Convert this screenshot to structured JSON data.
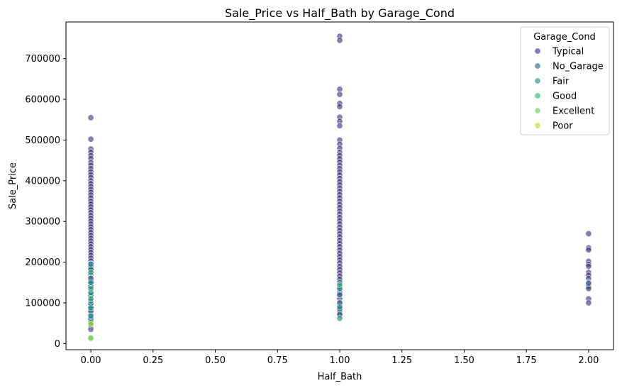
{
  "chart_data": {
    "type": "scatter",
    "title": "Sale_Price vs Half_Bath by Garage_Cond",
    "xlabel": "Half_Bath",
    "ylabel": "Sale_Price",
    "xlim": [
      -0.1,
      2.1
    ],
    "ylim": [
      -15000,
      790000
    ],
    "xticks": [
      0.0,
      0.25,
      0.5,
      0.75,
      1.0,
      1.25,
      1.5,
      1.75,
      2.0
    ],
    "xtick_labels": [
      "0.00",
      "0.25",
      "0.50",
      "0.75",
      "1.00",
      "1.25",
      "1.50",
      "1.75",
      "2.00"
    ],
    "yticks": [
      0,
      100000,
      200000,
      300000,
      400000,
      500000,
      600000,
      700000
    ],
    "ytick_labels": [
      "0",
      "100000",
      "200000",
      "300000",
      "400000",
      "500000",
      "600000",
      "700000"
    ],
    "grid": false,
    "legend": {
      "title": "Garage_Cond",
      "placement": "top-right"
    },
    "series": [
      {
        "name": "Typical",
        "color": "#443983",
        "points": [
          [
            0,
            555000
          ],
          [
            0,
            502000
          ],
          [
            0,
            478000
          ],
          [
            0,
            470000
          ],
          [
            0,
            462000
          ],
          [
            0,
            455000
          ],
          [
            0,
            445000
          ],
          [
            0,
            438000
          ],
          [
            0,
            430000
          ],
          [
            0,
            422000
          ],
          [
            0,
            415000
          ],
          [
            0,
            408000
          ],
          [
            0,
            400000
          ],
          [
            0,
            393000
          ],
          [
            0,
            386000
          ],
          [
            0,
            379000
          ],
          [
            0,
            372000
          ],
          [
            0,
            365000
          ],
          [
            0,
            358000
          ],
          [
            0,
            350000
          ],
          [
            0,
            343000
          ],
          [
            0,
            336000
          ],
          [
            0,
            329000
          ],
          [
            0,
            322000
          ],
          [
            0,
            315000
          ],
          [
            0,
            308000
          ],
          [
            0,
            301000
          ],
          [
            0,
            294000
          ],
          [
            0,
            287000
          ],
          [
            0,
            280000
          ],
          [
            0,
            273000
          ],
          [
            0,
            266000
          ],
          [
            0,
            259000
          ],
          [
            0,
            252000
          ],
          [
            0,
            245000
          ],
          [
            0,
            238000
          ],
          [
            0,
            231000
          ],
          [
            0,
            224000
          ],
          [
            0,
            217000
          ],
          [
            0,
            210000
          ],
          [
            0,
            203000
          ],
          [
            0,
            196000
          ],
          [
            0,
            189000
          ],
          [
            0,
            182000
          ],
          [
            0,
            175000
          ],
          [
            0,
            168000
          ],
          [
            0,
            161000
          ],
          [
            0,
            154000
          ],
          [
            0,
            147000
          ],
          [
            0,
            140000
          ],
          [
            0,
            133000
          ],
          [
            0,
            126000
          ],
          [
            0,
            119000
          ],
          [
            0,
            112000
          ],
          [
            0,
            105000
          ],
          [
            0,
            98000
          ],
          [
            0,
            91000
          ],
          [
            0,
            84000
          ],
          [
            0,
            77000
          ],
          [
            0,
            70000
          ],
          [
            0,
            63000
          ],
          [
            0,
            56000
          ],
          [
            0,
            49000
          ],
          [
            0,
            42000
          ],
          [
            0,
            35000
          ],
          [
            1,
            755000
          ],
          [
            1,
            745000
          ],
          [
            1,
            625000
          ],
          [
            1,
            612000
          ],
          [
            1,
            590000
          ],
          [
            1,
            582000
          ],
          [
            1,
            556000
          ],
          [
            1,
            546000
          ],
          [
            1,
            535000
          ],
          [
            1,
            500000
          ],
          [
            1,
            490000
          ],
          [
            1,
            480000
          ],
          [
            1,
            470000
          ],
          [
            1,
            462000
          ],
          [
            1,
            454000
          ],
          [
            1,
            446000
          ],
          [
            1,
            438000
          ],
          [
            1,
            430000
          ],
          [
            1,
            422000
          ],
          [
            1,
            414000
          ],
          [
            1,
            406000
          ],
          [
            1,
            398000
          ],
          [
            1,
            390000
          ],
          [
            1,
            382000
          ],
          [
            1,
            374000
          ],
          [
            1,
            366000
          ],
          [
            1,
            358000
          ],
          [
            1,
            350000
          ],
          [
            1,
            342000
          ],
          [
            1,
            334000
          ],
          [
            1,
            326000
          ],
          [
            1,
            318000
          ],
          [
            1,
            310000
          ],
          [
            1,
            302000
          ],
          [
            1,
            294000
          ],
          [
            1,
            286000
          ],
          [
            1,
            278000
          ],
          [
            1,
            270000
          ],
          [
            1,
            262000
          ],
          [
            1,
            254000
          ],
          [
            1,
            246000
          ],
          [
            1,
            238000
          ],
          [
            1,
            230000
          ],
          [
            1,
            222000
          ],
          [
            1,
            214000
          ],
          [
            1,
            206000
          ],
          [
            1,
            198000
          ],
          [
            1,
            190000
          ],
          [
            1,
            182000
          ],
          [
            1,
            174000
          ],
          [
            1,
            166000
          ],
          [
            1,
            158000
          ],
          [
            1,
            150000
          ],
          [
            1,
            142000
          ],
          [
            1,
            134000
          ],
          [
            1,
            126000
          ],
          [
            1,
            118000
          ],
          [
            1,
            110000
          ],
          [
            1,
            102000
          ],
          [
            1,
            94000
          ],
          [
            1,
            86000
          ],
          [
            1,
            78000
          ],
          [
            1,
            70000
          ],
          [
            2,
            270000
          ],
          [
            2,
            235000
          ],
          [
            2,
            230000
          ],
          [
            2,
            202000
          ],
          [
            2,
            195000
          ],
          [
            2,
            190000
          ],
          [
            2,
            175000
          ],
          [
            2,
            168000
          ],
          [
            2,
            160000
          ],
          [
            2,
            150000
          ],
          [
            2,
            140000
          ],
          [
            2,
            135000
          ],
          [
            2,
            110000
          ],
          [
            2,
            100000
          ]
        ]
      },
      {
        "name": "No_Garage",
        "color": "#31688e",
        "points": [
          [
            0,
            182000
          ],
          [
            0,
            160000
          ],
          [
            0,
            140000
          ],
          [
            0,
            118000
          ],
          [
            0,
            98000
          ],
          [
            0,
            80000
          ],
          [
            0,
            60000
          ],
          [
            0,
            45000
          ],
          [
            1,
            140000
          ],
          [
            1,
            120000
          ],
          [
            1,
            100000
          ],
          [
            1,
            85000
          ],
          [
            1,
            72000
          ],
          [
            2,
            148000
          ]
        ]
      },
      {
        "name": "Fair",
        "color": "#21918c",
        "points": [
          [
            0,
            195000
          ],
          [
            0,
            150000
          ],
          [
            0,
            125000
          ],
          [
            0,
            105000
          ],
          [
            0,
            88000
          ],
          [
            0,
            68000
          ],
          [
            0,
            52000
          ],
          [
            1,
            135000
          ],
          [
            1,
            90000
          ],
          [
            1,
            62000
          ]
        ]
      },
      {
        "name": "Good",
        "color": "#35b779",
        "points": [
          [
            0,
            175000
          ],
          [
            0,
            135000
          ],
          [
            0,
            110000
          ],
          [
            1,
            145000
          ]
        ]
      },
      {
        "name": "Excellent",
        "color": "#6ece58",
        "points": [
          [
            0,
            15000
          ],
          [
            0,
            13000
          ]
        ]
      },
      {
        "name": "Poor",
        "color": "#b5de2b",
        "points": [
          [
            0,
            48000
          ]
        ]
      }
    ]
  }
}
